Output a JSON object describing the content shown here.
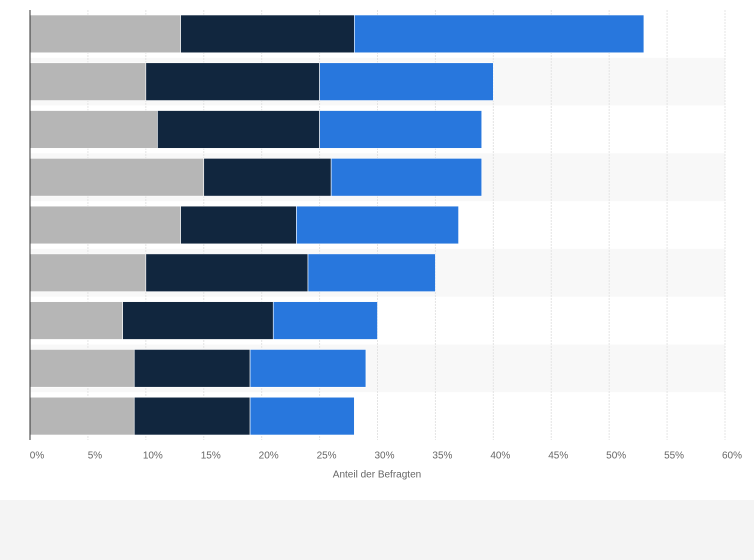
{
  "chart_data": {
    "type": "stacked-barh",
    "x_label": "Anteil der Befragten",
    "series": [
      {
        "color": "#b6b6b6",
        "values": [
          13,
          10,
          11,
          15,
          13,
          10,
          8,
          9,
          9
        ]
      },
      {
        "color": "#11263e",
        "values": [
          15,
          15,
          14,
          11,
          10,
          14,
          13,
          10,
          10
        ]
      },
      {
        "color": "#2877dd",
        "values": [
          25,
          15,
          14,
          13,
          14,
          11,
          9,
          10,
          9
        ]
      }
    ],
    "xlim": [
      0,
      60
    ],
    "xticks": [
      {
        "value": 0,
        "label": "0%"
      },
      {
        "value": 5,
        "label": "5%"
      },
      {
        "value": 10,
        "label": "10%"
      },
      {
        "value": 15,
        "label": "15%"
      },
      {
        "value": 20,
        "label": "20%"
      },
      {
        "value": 25,
        "label": "25%"
      },
      {
        "value": 30,
        "label": "30%"
      },
      {
        "value": 35,
        "label": "35%"
      },
      {
        "value": 40,
        "label": "40%"
      },
      {
        "value": 45,
        "label": "45%"
      },
      {
        "value": 50,
        "label": "50%"
      },
      {
        "value": 55,
        "label": "55%"
      },
      {
        "value": 60,
        "label": "60%"
      }
    ],
    "grid": true
  }
}
